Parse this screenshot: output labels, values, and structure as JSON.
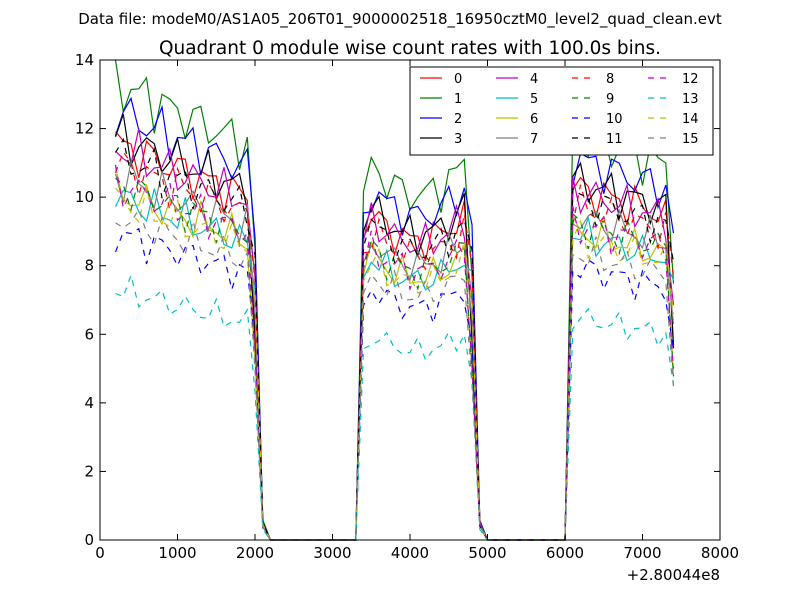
{
  "suptitle": "Data file: modeM0/AS1A05_206T01_9000002518_16950cztM0_level2_quad_clean.evt",
  "chart_data": {
    "type": "line",
    "title": "Quadrant 0 module wise count rates with 100.0s bins.",
    "xlabel": "",
    "ylabel": "",
    "x_offset_label": "+2.80044e8",
    "xlim": [
      0,
      8000
    ],
    "ylim": [
      0,
      14
    ],
    "xticks": [
      0,
      1000,
      2000,
      3000,
      4000,
      5000,
      6000,
      7000,
      8000
    ],
    "yticks": [
      0,
      2,
      4,
      6,
      8,
      10,
      12,
      14
    ],
    "grid": false,
    "legend_position": "top-right",
    "legend_columns": 4,
    "x": [
      200,
      300,
      400,
      500,
      600,
      700,
      800,
      900,
      1000,
      1100,
      1200,
      1300,
      1400,
      1500,
      1600,
      1700,
      1800,
      1900,
      2000,
      2100,
      2200,
      2300,
      2400,
      2500,
      2600,
      2700,
      2800,
      2900,
      3000,
      3100,
      3200,
      3300,
      3400,
      3500,
      3600,
      3700,
      3800,
      3900,
      4000,
      4100,
      4200,
      4300,
      4400,
      4500,
      4600,
      4700,
      4800,
      4900,
      5000,
      5100,
      5200,
      5300,
      5400,
      5500,
      5600,
      5700,
      5800,
      5900,
      6000,
      6100,
      6200,
      6300,
      6400,
      6500,
      6600,
      6700,
      6800,
      6900,
      7000,
      7100,
      7200,
      7300,
      7400
    ],
    "series": [
      {
        "name": "0",
        "color": "#ff0000",
        "style": "solid",
        "level": 9.8
      },
      {
        "name": "1",
        "color": "#008000",
        "style": "solid",
        "level": 11.3
      },
      {
        "name": "2",
        "color": "#0000ff",
        "style": "solid",
        "level": 10.6
      },
      {
        "name": "3",
        "color": "#000000",
        "style": "solid",
        "level": 10.0
      },
      {
        "name": "4",
        "color": "#bf00bf",
        "style": "solid",
        "level": 9.7
      },
      {
        "name": "5",
        "color": "#00bfbf",
        "style": "solid",
        "level": 8.5
      },
      {
        "name": "6",
        "color": "#bfbf00",
        "style": "solid",
        "level": 8.6
      },
      {
        "name": "7",
        "color": "#808080",
        "style": "solid",
        "level": 9.0
      },
      {
        "name": "8",
        "color": "#ff0000",
        "style": "dashed",
        "level": 9.3
      },
      {
        "name": "9",
        "color": "#008000",
        "style": "dashed",
        "level": 8.8
      },
      {
        "name": "10",
        "color": "#0000ff",
        "style": "dashed",
        "level": 7.6
      },
      {
        "name": "11",
        "color": "#000000",
        "style": "dashed",
        "level": 9.5
      },
      {
        "name": "12",
        "color": "#bf00bf",
        "style": "dashed",
        "level": 8.8
      },
      {
        "name": "13",
        "color": "#00bfbf",
        "style": "dashed",
        "level": 6.2
      },
      {
        "name": "14",
        "color": "#bfbf00",
        "style": "dashed",
        "level": 8.4
      },
      {
        "name": "15",
        "color": "#808080",
        "style": "dashed",
        "level": 8.0
      }
    ]
  }
}
